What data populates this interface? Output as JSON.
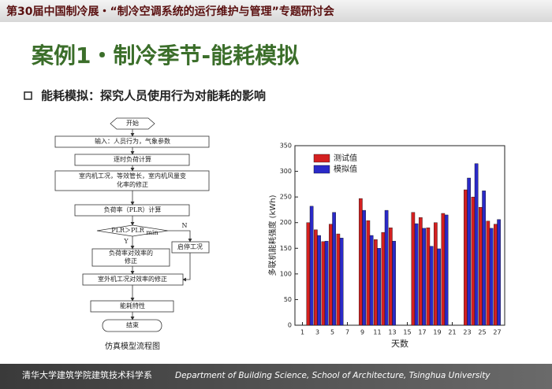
{
  "header": {
    "title": "第30届中国制冷展・“制冷空调系统的运行维护与管理”专题研讨会"
  },
  "slide": {
    "title": "案例1・制冷季节-能耗模拟",
    "subtitle": "能耗模拟：探究人员使用行为对能耗的影响"
  },
  "flowchart": {
    "nodes": [
      {
        "label": "开始"
      },
      {
        "label": "输入：人员行为，气象参数"
      },
      {
        "label": "逐时负荷计算"
      },
      {
        "lines": [
          "室内机工况，等效管长，室内机风量变",
          "化率的修正"
        ]
      },
      {
        "label": "负荷率（PLR）计算"
      },
      {
        "label": "PLR＞PLR",
        "subscript": "min"
      },
      {
        "label": "启停工况"
      },
      {
        "lines": [
          "负荷率对效率的",
          "修正"
        ]
      },
      {
        "label": "室外机工况对效率的修正"
      },
      {
        "label": "能耗特性"
      },
      {
        "label": "结束"
      }
    ],
    "branch_yes": "Y",
    "branch_no": "N",
    "caption": "仿真模型流程图"
  },
  "chart_data": {
    "type": "bar",
    "x_label": "天数",
    "y_label": "多联机能耗强度 (kWh)",
    "x": [
      2,
      3,
      4,
      5,
      6,
      9,
      10,
      11,
      12,
      13,
      16,
      17,
      18,
      19,
      20,
      23,
      24,
      25,
      26,
      27
    ],
    "series": [
      {
        "name": "测试值",
        "color": "#d42020",
        "values": [
          200,
          186,
          163,
          197,
          178,
          247,
          204,
          167,
          181,
          190,
          220,
          210,
          190,
          200,
          218,
          264,
          250,
          230,
          203,
          197
        ]
      },
      {
        "name": "模拟值",
        "color": "#2a2ac8",
        "values": [
          232,
          175,
          164,
          220,
          170,
          224,
          175,
          150,
          224,
          164,
          198,
          189,
          154,
          149,
          215,
          287,
          315,
          262,
          189,
          206
        ]
      }
    ],
    "xlim": [
      0,
      28
    ],
    "xticks": [
      1,
      3,
      5,
      7,
      9,
      11,
      13,
      15,
      17,
      19,
      21,
      23,
      25,
      27
    ],
    "ylim": [
      0,
      350
    ],
    "yticks": [
      0,
      50,
      100,
      150,
      200,
      250,
      300,
      350
    ],
    "legend": "upper-left",
    "grid": false
  },
  "footer": {
    "institution": "清华大学建筑学院建筑技术科学系",
    "english": "Department of Building Science, School of Architecture, Tsinghua University"
  }
}
